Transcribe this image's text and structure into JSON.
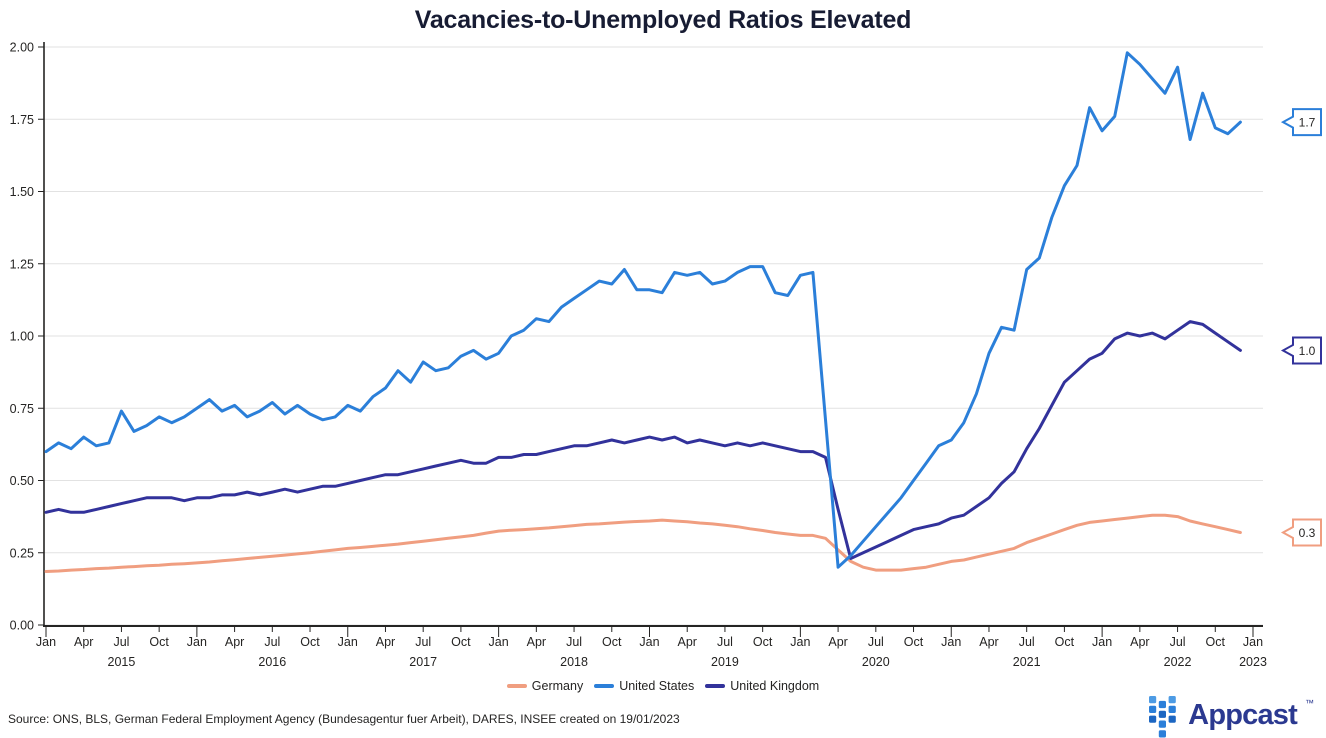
{
  "title": "Vacancies-to-Unemployed Ratios Elevated",
  "source_note": "Source: ONS, BLS, German Federal Employment Agency (Bundesagentur fuer Arbeit), DARES, INSEE created on 19/01/2023",
  "logo": {
    "text": "Appcast",
    "trademark": "™",
    "text_color": "#2b3990",
    "icon_colors": {
      "light": "#4d9be4",
      "mid": "#2b7fd9",
      "dark": "#1c66c2"
    }
  },
  "colors": {
    "title": "#171c33",
    "axis_text": "#252423",
    "axis_line": "#252423",
    "gridline": "#e2e2e2",
    "callout_text": "#1a1a1a",
    "background": "#ffffff"
  },
  "chart_data": {
    "type": "line",
    "title": "Vacancies-to-Unemployed Ratios Elevated",
    "x_start": "Jan 2015",
    "x_axis_end": "Jan 2023",
    "x_unit": "month",
    "x_tick_labels": [
      "Jan",
      "Apr",
      "Jul",
      "Oct"
    ],
    "year_labels": [
      "2015",
      "2016",
      "2017",
      "2018",
      "2019",
      "2020",
      "2021",
      "2022",
      "2023"
    ],
    "ylim": [
      0,
      2.0
    ],
    "y_tick_labels": [
      "0.00",
      "0.25",
      "0.50",
      "0.75",
      "1.00",
      "1.25",
      "1.50",
      "1.75",
      "2.00"
    ],
    "grid": "horizontal-only",
    "legend_position": "bottom-center",
    "series": [
      {
        "name": "Germany",
        "color": "#f09e80",
        "end_label": "0.3",
        "values": [
          0.185,
          0.187,
          0.19,
          0.192,
          0.195,
          0.197,
          0.2,
          0.202,
          0.205,
          0.207,
          0.21,
          0.212,
          0.215,
          0.218,
          0.222,
          0.226,
          0.23,
          0.234,
          0.238,
          0.242,
          0.246,
          0.25,
          0.255,
          0.26,
          0.265,
          0.268,
          0.272,
          0.276,
          0.28,
          0.285,
          0.29,
          0.295,
          0.3,
          0.305,
          0.31,
          0.318,
          0.325,
          0.328,
          0.33,
          0.333,
          0.336,
          0.34,
          0.344,
          0.348,
          0.35,
          0.353,
          0.356,
          0.358,
          0.36,
          0.363,
          0.36,
          0.357,
          0.353,
          0.35,
          0.345,
          0.34,
          0.333,
          0.327,
          0.32,
          0.315,
          0.31,
          0.31,
          0.3,
          0.26,
          0.22,
          0.2,
          0.19,
          0.19,
          0.19,
          0.195,
          0.2,
          0.21,
          0.22,
          0.225,
          0.235,
          0.245,
          0.255,
          0.265,
          0.285,
          0.3,
          0.315,
          0.33,
          0.345,
          0.355,
          0.36,
          0.365,
          0.37,
          0.375,
          0.38,
          0.38,
          0.375,
          0.36,
          0.35,
          0.34,
          0.33,
          0.32
        ]
      },
      {
        "name": "United States",
        "color": "#2b7fd9",
        "end_label": "1.7",
        "values": [
          0.6,
          0.63,
          0.61,
          0.65,
          0.62,
          0.63,
          0.74,
          0.67,
          0.69,
          0.72,
          0.7,
          0.72,
          0.75,
          0.78,
          0.74,
          0.76,
          0.72,
          0.74,
          0.77,
          0.73,
          0.76,
          0.73,
          0.71,
          0.72,
          0.76,
          0.74,
          0.79,
          0.82,
          0.88,
          0.84,
          0.91,
          0.88,
          0.89,
          0.93,
          0.95,
          0.92,
          0.94,
          1.0,
          1.02,
          1.06,
          1.05,
          1.1,
          1.13,
          1.16,
          1.19,
          1.18,
          1.23,
          1.16,
          1.16,
          1.15,
          1.22,
          1.21,
          1.22,
          1.18,
          1.19,
          1.22,
          1.24,
          1.24,
          1.15,
          1.14,
          1.21,
          1.22,
          0.71,
          0.2,
          0.24,
          0.29,
          0.34,
          0.39,
          0.44,
          0.5,
          0.56,
          0.62,
          0.64,
          0.7,
          0.8,
          0.94,
          1.03,
          1.02,
          1.23,
          1.27,
          1.41,
          1.52,
          1.59,
          1.79,
          1.71,
          1.76,
          1.98,
          1.94,
          1.89,
          1.84,
          1.93,
          1.68,
          1.84,
          1.72,
          1.7,
          1.74
        ]
      },
      {
        "name": "United Kingdom",
        "color": "#32329b",
        "end_label": "1.0",
        "values": [
          0.39,
          0.4,
          0.39,
          0.39,
          0.4,
          0.41,
          0.42,
          0.43,
          0.44,
          0.44,
          0.44,
          0.43,
          0.44,
          0.44,
          0.45,
          0.45,
          0.46,
          0.45,
          0.46,
          0.47,
          0.46,
          0.47,
          0.48,
          0.48,
          0.49,
          0.5,
          0.51,
          0.52,
          0.52,
          0.53,
          0.54,
          0.55,
          0.56,
          0.57,
          0.56,
          0.56,
          0.58,
          0.58,
          0.59,
          0.59,
          0.6,
          0.61,
          0.62,
          0.62,
          0.63,
          0.64,
          0.63,
          0.64,
          0.65,
          0.64,
          0.65,
          0.63,
          0.64,
          0.63,
          0.62,
          0.63,
          0.62,
          0.63,
          0.62,
          0.61,
          0.6,
          0.6,
          0.58,
          0.4,
          0.23,
          0.25,
          0.27,
          0.29,
          0.31,
          0.33,
          0.34,
          0.35,
          0.37,
          0.38,
          0.41,
          0.44,
          0.49,
          0.53,
          0.61,
          0.68,
          0.76,
          0.84,
          0.88,
          0.92,
          0.94,
          0.99,
          1.01,
          1.0,
          1.01,
          0.99,
          1.02,
          1.05,
          1.04,
          1.01,
          0.98,
          0.95
        ]
      }
    ]
  }
}
